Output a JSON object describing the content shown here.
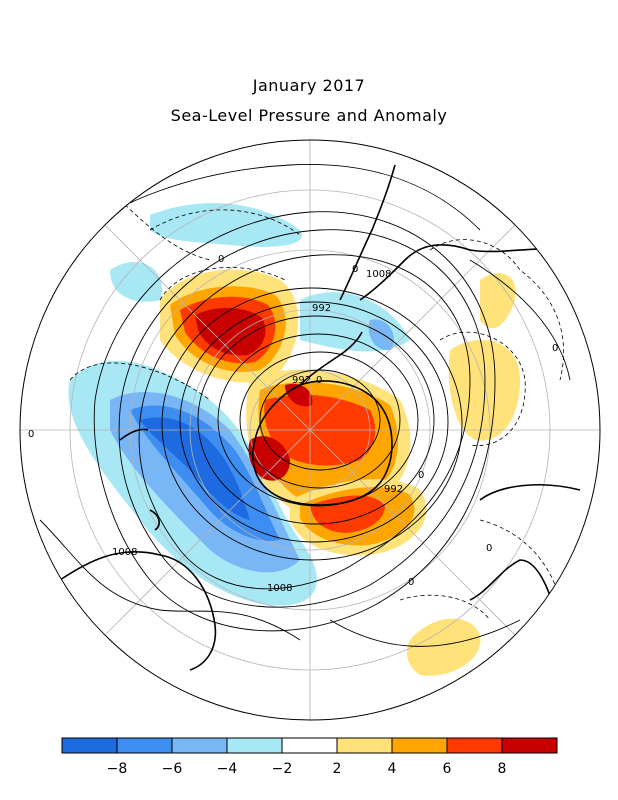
{
  "title": "January 2017",
  "subtitle": "Sea-Level Pressure and Anomaly",
  "colors": {
    "neg8": "#1e6ae0",
    "neg6": "#3d8ef0",
    "neg4": "#78b6f5",
    "neg2": "#a8e8f5",
    "zero": "#ffffff",
    "pos2": "#ffe27a",
    "pos4": "#ffa500",
    "pos6": "#ff3a00",
    "pos8": "#c80000"
  },
  "colorbar": {
    "tick_labels": [
      "−8",
      "−6",
      "−4",
      "−2",
      "2",
      "4",
      "6",
      "8"
    ],
    "bins": [
      "neg8",
      "neg6",
      "neg4",
      "neg2",
      "zero",
      "pos2",
      "pos4",
      "pos6",
      "pos8"
    ]
  },
  "contour_labels": [
    "992",
    "1008",
    "992",
    "992",
    "1008",
    "1008",
    "0",
    "0",
    "0",
    "0",
    "0",
    "0",
    "0",
    "0"
  ]
}
